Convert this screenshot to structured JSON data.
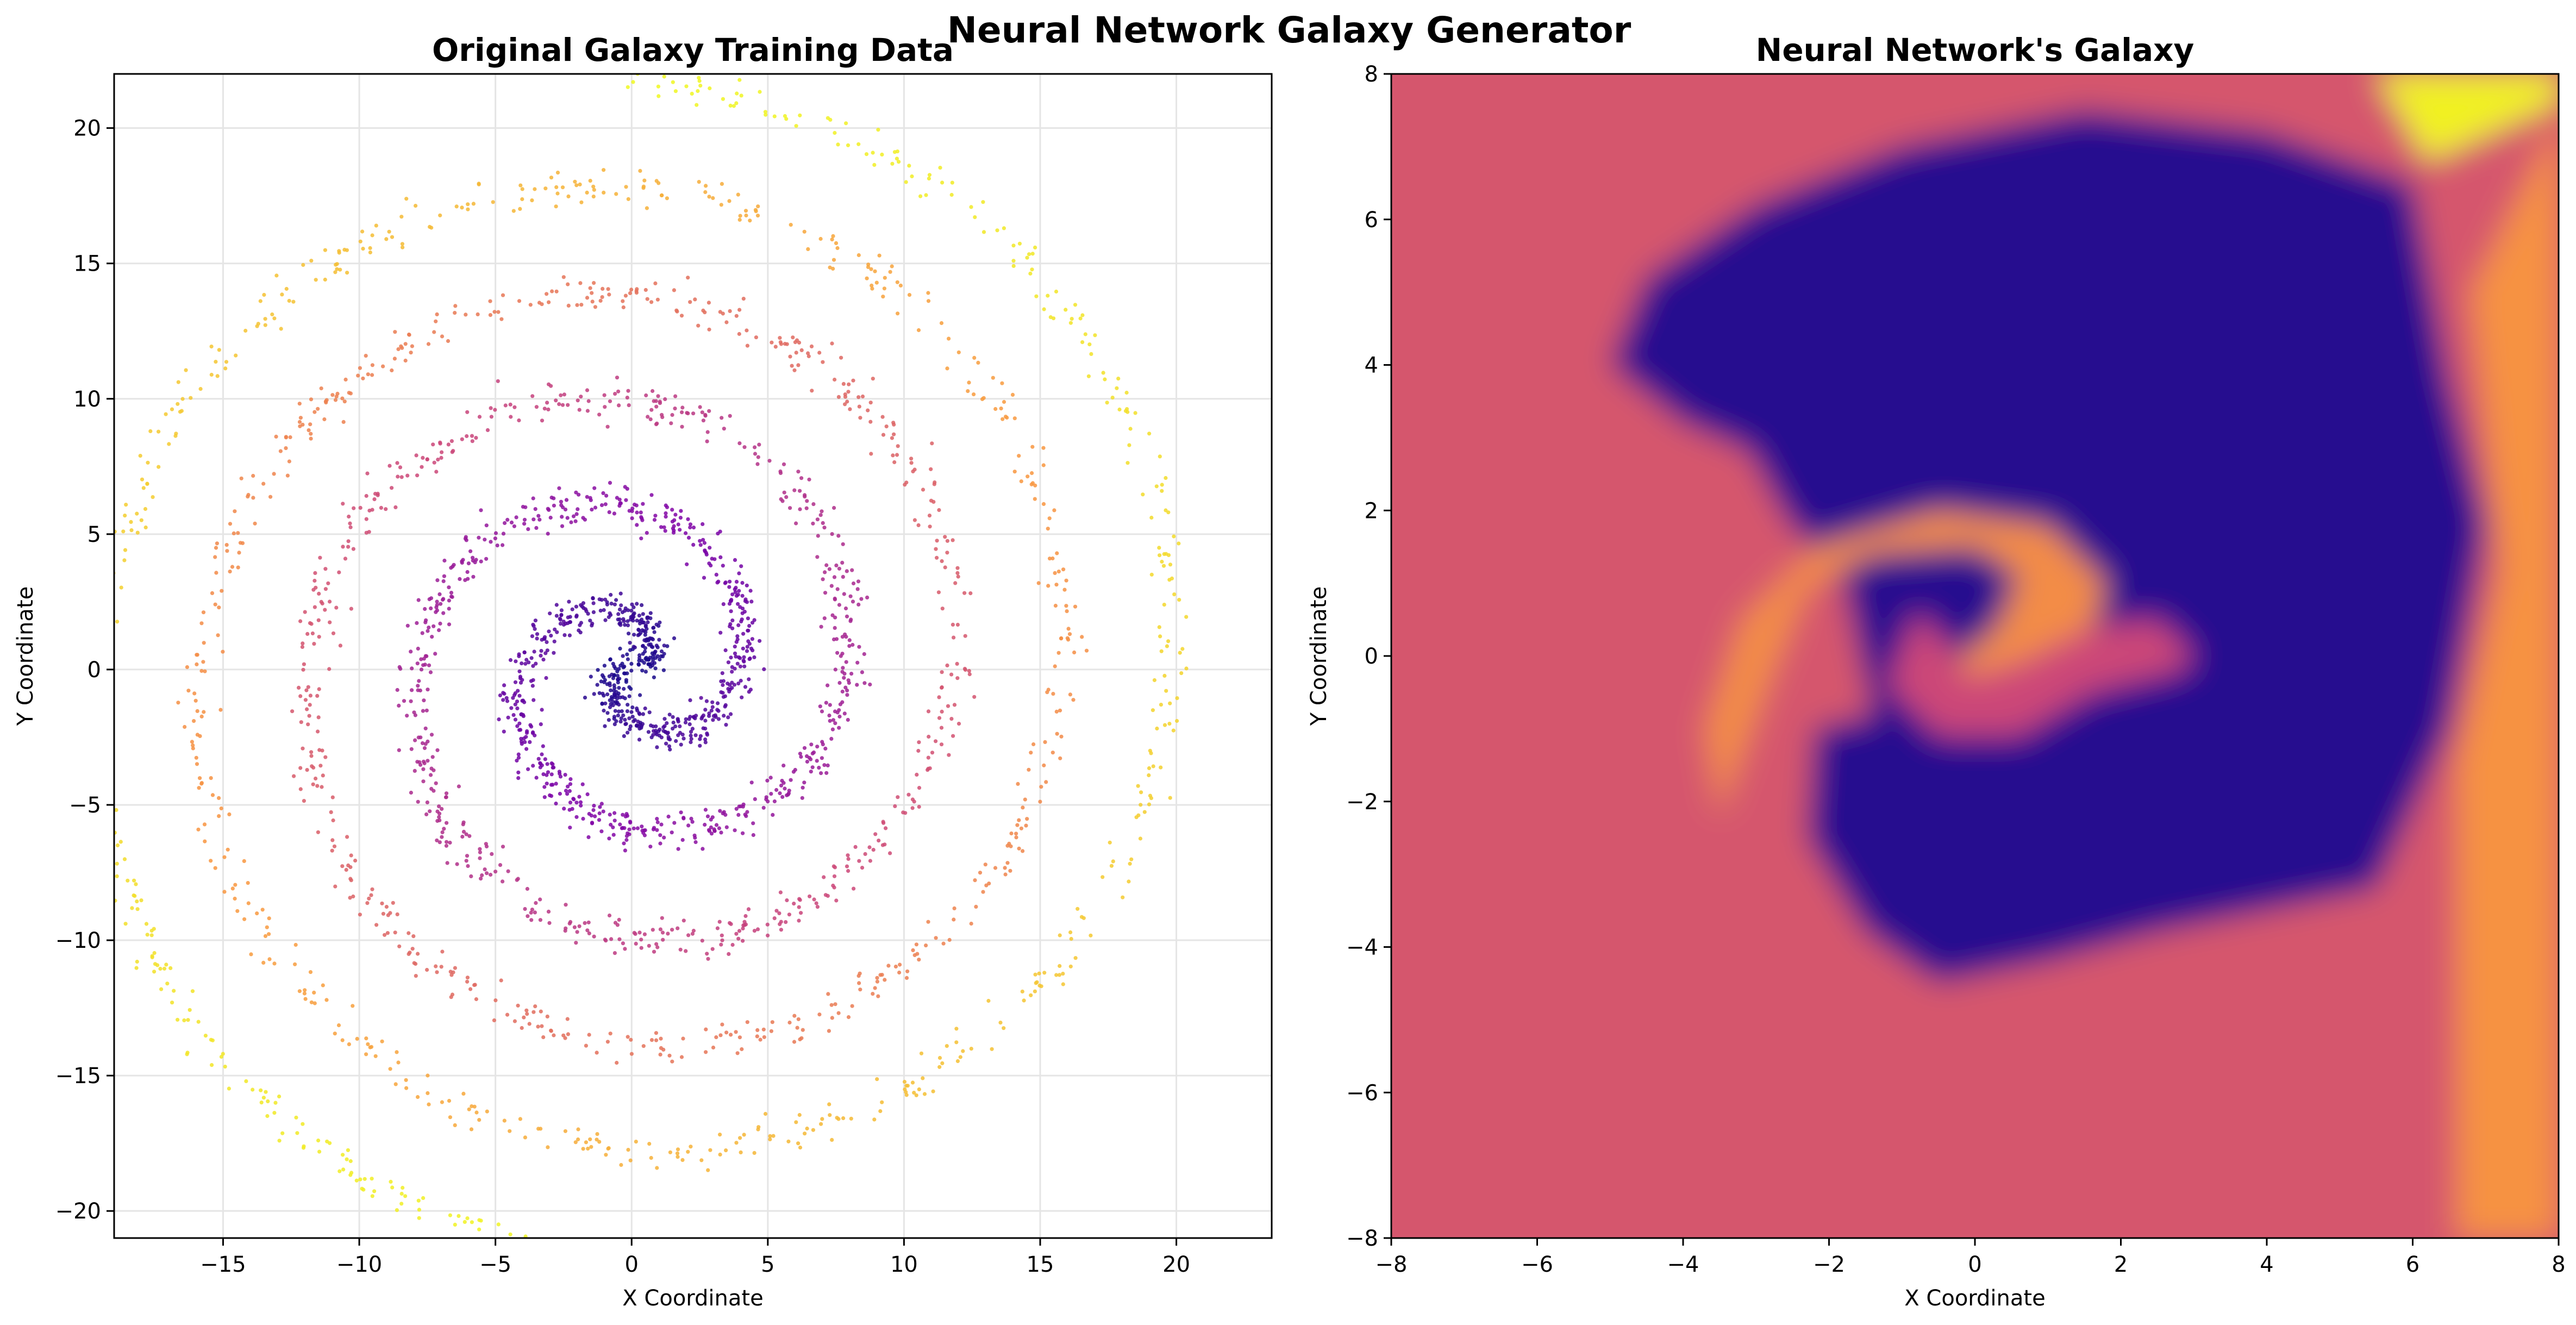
{
  "figure": {
    "suptitle": "Neural Network Galaxy Generator",
    "colormap": "plasma",
    "colors": {
      "plasma_low": "#0d0887",
      "plasma_mid_purple": "#7e03a8",
      "plasma_mid_pink": "#cc4778",
      "plasma_orange": "#f89540",
      "plasma_high": "#f0f921",
      "grid": "#e5e5e5",
      "axes": "#000000"
    }
  },
  "chart_data": [
    {
      "type": "scatter",
      "title": "Original Galaxy Training Data",
      "xlabel": "X Coordinate",
      "ylabel": "Y Coordinate",
      "xlim": [
        -19,
        23.5
      ],
      "ylim": [
        -21,
        22
      ],
      "xticks": [
        -15,
        -10,
        -5,
        0,
        5,
        10,
        15,
        20
      ],
      "yticks": [
        -20,
        -15,
        -10,
        -5,
        0,
        5,
        10,
        15,
        20
      ],
      "xtick_labels": [
        "−15",
        "−10",
        "−5",
        "0",
        "5",
        "10",
        "15",
        "20"
      ],
      "ytick_labels": [
        "−20",
        "−15",
        "−10",
        "−5",
        "0",
        "5",
        "10",
        "15",
        "20"
      ],
      "grid": true,
      "series": [
        {
          "arms": 2,
          "angle_start_rad": 0.3,
          "angle_end_rad": 17.3,
          "radius_per_rad": 1.26,
          "arm_phase_offsets_rad": [
            0,
            3.14159
          ],
          "noise_sd": 0.35,
          "points_per_arm": 1500,
          "color_by": "radius"
        }
      ]
    },
    {
      "type": "heatmap",
      "title": "Neural Network's Galaxy",
      "xlabel": "X Coordinate",
      "ylabel": "Y Coordinate",
      "xlim": [
        -8,
        8
      ],
      "ylim": [
        -8,
        8
      ],
      "xticks": [
        -8,
        -6,
        -4,
        -2,
        0,
        2,
        4,
        6,
        8
      ],
      "yticks": [
        -8,
        -6,
        -4,
        -2,
        0,
        2,
        4,
        6,
        8
      ],
      "xtick_labels": [
        "−8",
        "−6",
        "−4",
        "−2",
        "0",
        "2",
        "4",
        "6",
        "8"
      ],
      "ytick_labels": [
        "−8",
        "−6",
        "−4",
        "−2",
        "0",
        "2",
        "4",
        "6",
        "8"
      ],
      "grid": false,
      "value_range": [
        0,
        1
      ],
      "regions": [
        {
          "name": "background",
          "value": 0.55
        },
        {
          "name": "dark-core",
          "value": 0.06,
          "polygon": [
            [
              0.9,
              1.4
            ],
            [
              0.9,
              -0.3
            ],
            [
              0.3,
              -0.3
            ],
            [
              -0.2,
              0.4
            ],
            [
              -0.8,
              0.2
            ],
            [
              -1.2,
              -0.5
            ],
            [
              -0.9,
              -1.2
            ],
            [
              -0.2,
              -1.6
            ],
            [
              1.0,
              -1.2
            ],
            [
              2.2,
              -0.6
            ],
            [
              3.0,
              -0.2
            ],
            [
              4.0,
              0.4
            ],
            [
              5.2,
              2.2
            ],
            [
              4.8,
              3.6
            ],
            [
              3.0,
              4.5
            ],
            [
              1.5,
              5.0
            ],
            [
              -0.2,
              4.8
            ],
            [
              -2.0,
              4.0
            ],
            [
              -3.2,
              3.0
            ],
            [
              -2.6,
              1.9
            ],
            [
              -1.8,
              1.0
            ],
            [
              -1.4,
              -0.8
            ],
            [
              -2.2,
              -1.0
            ],
            [
              -2.3,
              -2.5
            ],
            [
              -1.5,
              -3.8
            ],
            [
              -0.5,
              -4.5
            ],
            [
              1.0,
              -4.2
            ],
            [
              2.5,
              -3.8
            ],
            [
              4.0,
              -3.5
            ],
            [
              5.5,
              -3.2
            ],
            [
              6.5,
              -1.0
            ],
            [
              7.0,
              1.8
            ],
            [
              6.5,
              3.8
            ],
            [
              6.0,
              6.5
            ],
            [
              4.0,
              7.2
            ],
            [
              1.5,
              7.5
            ],
            [
              -1.0,
              7.0
            ],
            [
              -3.0,
              6.2
            ],
            [
              -4.5,
              5.2
            ],
            [
              -5.0,
              4.0
            ],
            [
              -4.0,
              3.2
            ],
            [
              -2.6,
              2.6
            ],
            [
              -1.0,
              2.0
            ],
            [
              0.0,
              1.7
            ]
          ]
        },
        {
          "name": "orange-arm",
          "value": 0.72,
          "polygon": [
            [
              -3.5,
              -2.2
            ],
            [
              -3.7,
              -1.0
            ],
            [
              -3.2,
              0.5
            ],
            [
              -2.2,
              1.5
            ],
            [
              -0.5,
              2.0
            ],
            [
              1.0,
              1.8
            ],
            [
              1.8,
              1.0
            ],
            [
              1.5,
              0.0
            ],
            [
              0.8,
              -0.6
            ],
            [
              0.0,
              -0.9
            ],
            [
              -0.5,
              -0.7
            ],
            [
              -0.3,
              -0.1
            ],
            [
              0.3,
              0.4
            ],
            [
              0.6,
              1.1
            ],
            [
              0.0,
              1.5
            ],
            [
              -1.4,
              1.4
            ],
            [
              -2.3,
              0.9
            ],
            [
              -2.8,
              -0.3
            ]
          ]
        },
        {
          "name": "pink-swirl",
          "value": 0.5,
          "polygon": [
            [
              -0.8,
              0.6
            ],
            [
              -1.2,
              -0.4
            ],
            [
              -0.5,
              -1.1
            ],
            [
              0.6,
              -1.1
            ],
            [
              1.6,
              -0.5
            ],
            [
              2.8,
              -0.2
            ],
            [
              3.0,
              0.0
            ],
            [
              2.5,
              0.5
            ],
            [
              1.6,
              0.4
            ],
            [
              0.6,
              -0.1
            ],
            [
              -0.1,
              -0.3
            ],
            [
              -0.4,
              0.2
            ]
          ]
        },
        {
          "name": "yellow-corner",
          "value": 0.98,
          "polygon": [
            [
              5.5,
              8
            ],
            [
              8,
              8
            ],
            [
              8,
              7.6
            ],
            [
              6.2,
              6.8
            ]
          ]
        },
        {
          "name": "orange-right",
          "value": 0.74,
          "polygon": [
            [
              6.6,
              -8
            ],
            [
              8,
              -8
            ],
            [
              8,
              7.4
            ],
            [
              6.8,
              5.0
            ],
            [
              7.2,
              1.2
            ],
            [
              6.6,
              -1.5
            ]
          ]
        }
      ]
    }
  ]
}
